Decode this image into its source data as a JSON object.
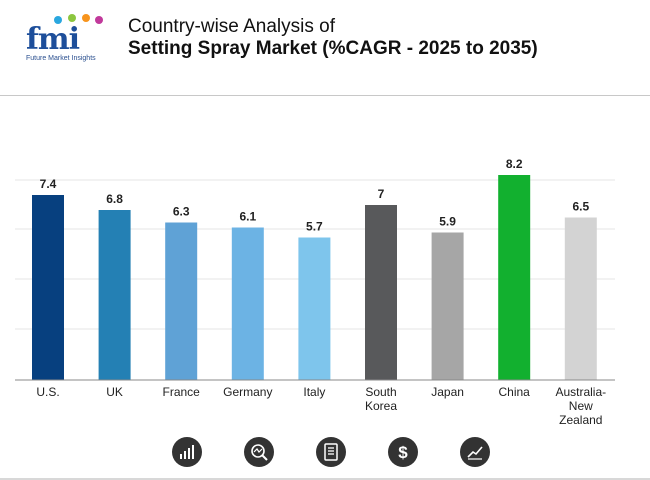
{
  "logo": {
    "text": "fmi",
    "subtitle": "Future Market Insights"
  },
  "header": {
    "title_line1": "Country-wise Analysis of",
    "title_line2": "Setting Spray Market (%CAGR - 2025 to 2035)"
  },
  "chart_data": {
    "type": "bar",
    "categories": [
      "U.S.",
      "UK",
      "France",
      "Germany",
      "Italy",
      "South Korea",
      "Japan",
      "China",
      "Australia-New Zealand"
    ],
    "category_lines": [
      [
        "U.S."
      ],
      [
        "UK"
      ],
      [
        "France"
      ],
      [
        "Germany"
      ],
      [
        "Italy"
      ],
      [
        "South",
        "Korea"
      ],
      [
        "Japan"
      ],
      [
        "China"
      ],
      [
        "Australia-",
        "New",
        "Zealand"
      ]
    ],
    "values": [
      7.4,
      6.8,
      6.3,
      6.1,
      5.7,
      7,
      5.9,
      8.2,
      6.5
    ],
    "data_labels": [
      "7.4",
      "6.8",
      "6.3",
      "6.1",
      "5.7",
      "7",
      "5.9",
      "8.2",
      "6.5"
    ],
    "colors": [
      "#07407f",
      "#2480b4",
      "#5fa2d6",
      "#6cb3e4",
      "#7ec5ec",
      "#58595b",
      "#a6a6a6",
      "#12b02f",
      "#d3d3d3"
    ],
    "ylim": [
      0,
      8.2
    ],
    "title": "",
    "xlabel": "",
    "ylabel": "",
    "grid": true
  },
  "footer_icons": [
    "bar-chart-icon",
    "magnifier-chart-icon",
    "document-icon",
    "dollar-icon",
    "trend-chart-icon"
  ]
}
